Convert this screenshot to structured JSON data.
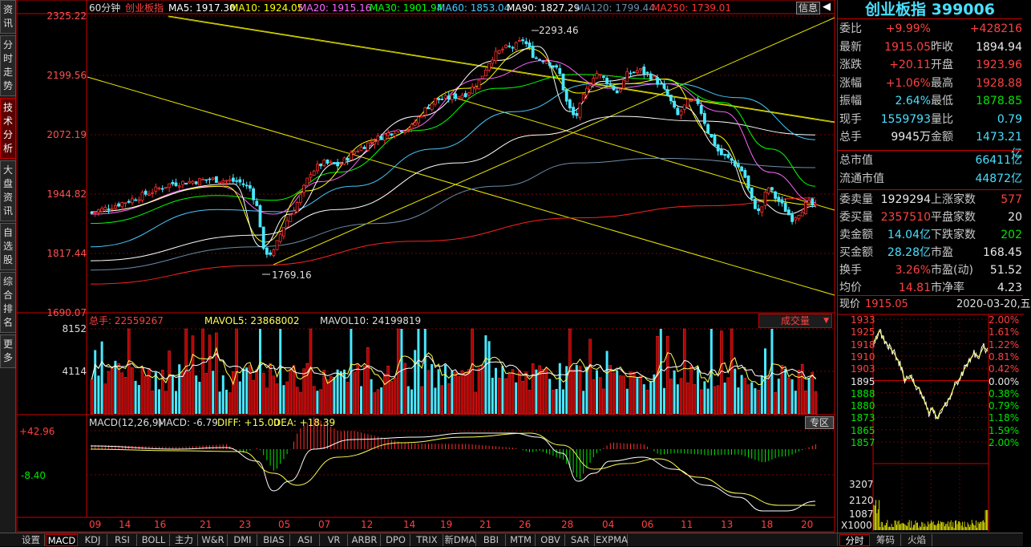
{
  "sidebar": {
    "tabs": [
      "资讯",
      "分时走势",
      "技术分析",
      "大盘资讯",
      "自选股",
      "综合排名",
      "更多"
    ]
  },
  "header": {
    "period": "60分钟",
    "name": "创业板指",
    "ma": [
      {
        "label": "MA5: 1917.30",
        "color": "#ffffff"
      },
      {
        "label": "MA10: 1924.05",
        "color": "#ffff00"
      },
      {
        "label": "MA20: 1915.16",
        "color": "#ff66ff"
      },
      {
        "label": "MA30: 1901.94",
        "color": "#00ff00"
      },
      {
        "label": "MA60: 1853.04",
        "color": "#48c8ff"
      },
      {
        "label": "MA90: 1827.29",
        "color": "#ffffff"
      },
      {
        "label": "MA120: 1799.44",
        "color": "#6c8ca8"
      },
      {
        "label": "MA250: 1739.01",
        "color": "#ff3030"
      }
    ],
    "info_button": "信息"
  },
  "price_axis": [
    "2325.22",
    "2199.56",
    "2072.19",
    "1944.82",
    "1817.44",
    "1690.07"
  ],
  "annotations": {
    "high": "2293.46",
    "low": "1769.16"
  },
  "volume": {
    "total": "总手: 22559267",
    "mavol5": "MAVOL5: 23868002",
    "mavol10": "MAVOL10: 24199819",
    "axis": [
      "8152",
      "4114"
    ],
    "selector": "成交量"
  },
  "macd": {
    "title": "MACD(12,26,9)",
    "macd_value": "MACD: -6.79",
    "diff": "DIFF: +15.00",
    "dea": "DEA: +18.39",
    "axis": [
      "+42.96",
      "-8.40"
    ],
    "button": "专区"
  },
  "date_axis": [
    "09",
    "14",
    "16",
    "21",
    "23",
    "05",
    "07",
    "12",
    "14",
    "19",
    "21",
    "26",
    "28",
    "04",
    "06",
    "11",
    "13",
    "18",
    "20"
  ],
  "bottom_tabs": [
    "设置",
    "MACD",
    "KDJ",
    "RSI",
    "BOLL",
    "主力",
    "W&R",
    "DMI",
    "BIAS",
    "ASI",
    "VR",
    "ARBR",
    "DPO",
    "TRIX",
    "新DMA",
    "BBI",
    "MTM",
    "OBV",
    "SAR",
    "EXPMA"
  ],
  "quote": {
    "title": "创业板指 399006",
    "rows": [
      {
        "l1": "委比",
        "v1": "+9.99%",
        "c1": "red",
        "l2": "",
        "v2": "+428216",
        "c2": "red"
      },
      {
        "l1": "最新",
        "v1": "1915.05",
        "c1": "red",
        "l2": "昨收",
        "v2": "1894.94",
        "c2": "wht"
      },
      {
        "l1": "涨跌",
        "v1": "+20.11",
        "c1": "red",
        "l2": "开盘",
        "v2": "1923.96",
        "c2": "red"
      },
      {
        "l1": "涨幅",
        "v1": "+1.06%",
        "c1": "red",
        "l2": "最高",
        "v2": "1928.88",
        "c2": "red"
      },
      {
        "l1": "振幅",
        "v1": "2.64%",
        "c1": "cyn",
        "l2": "最低",
        "v2": "1878.85",
        "c2": "grn"
      },
      {
        "l1": "现手",
        "v1": "1559793",
        "c1": "cyn",
        "l2": "量比",
        "v2": "0.79",
        "c2": "cyn"
      },
      {
        "l1": "总手",
        "v1": "9945万",
        "c1": "wht",
        "l2": "金额",
        "v2": "1473.21亿",
        "c2": "cyn"
      }
    ],
    "rows2": [
      {
        "l": "总市值",
        "v": "66411亿"
      },
      {
        "l": "流通市值",
        "v": "44872亿"
      }
    ],
    "rows3": [
      {
        "l1": "委卖量",
        "v1": "1929294",
        "c1": "wht",
        "l2": "上涨家数",
        "v2": "577",
        "c2": "red"
      },
      {
        "l1": "委买量",
        "v1": "2357510",
        "c1": "red",
        "l2": "平盘家数",
        "v2": "20",
        "c2": "wht"
      },
      {
        "l1": "卖金额",
        "v1": "14.04亿",
        "c1": "cyn",
        "l2": "下跌家数",
        "v2": "202",
        "c2": "grn"
      },
      {
        "l1": "买金额",
        "v1": "28.28亿",
        "c1": "cyn",
        "l2": "市盈",
        "v2": "168.45",
        "c2": "wht"
      },
      {
        "l1": "换手",
        "v1": "3.26%",
        "c1": "red",
        "l2": "市盈(动)",
        "v2": "51.52",
        "c2": "wht"
      },
      {
        "l1": "均价",
        "v1": "14.81",
        "c1": "red",
        "l2": "市净率",
        "v2": "4.23",
        "c2": "wht"
      }
    ]
  },
  "mini": {
    "label": "现价",
    "price": "1915.05",
    "date": "2020-03-20,五",
    "left": [
      "1933",
      "1925",
      "1918",
      "1910",
      "1903",
      "1895",
      "1888",
      "1880",
      "1873",
      "1865",
      "1857"
    ],
    "right": [
      "2.00%",
      "1.61%",
      "1.22%",
      "0.81%",
      "0.42%",
      "0.00%",
      "0.38%",
      "0.79%",
      "1.18%",
      "1.59%",
      "2.00%"
    ],
    "vol": [
      "3207",
      "2120",
      "1087",
      "X1000"
    ],
    "tabs": [
      "分时",
      "筹码",
      "火焰"
    ]
  }
}
